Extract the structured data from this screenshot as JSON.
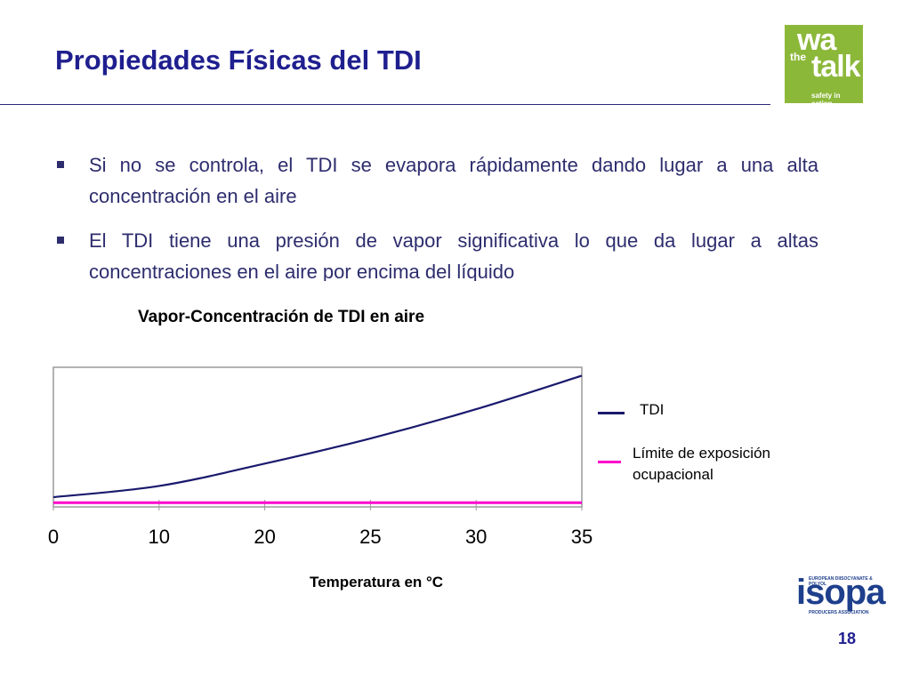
{
  "slide": {
    "title": "Propiedades Físicas del TDI",
    "page_number": "18"
  },
  "logos": {
    "walk": {
      "line1": "wa",
      "line2": "the",
      "line3": "talk",
      "tagline": "safety in action",
      "color": "#8cb83a"
    },
    "isopa": {
      "name": "isopa",
      "top_text": "EUROPEAN DIISOCYANATE & POLYOL",
      "bottom_text": "PRODUCERS ASSOCIATION",
      "color": "#1e3f8c"
    }
  },
  "bullets": [
    "Si no se controla, el TDI se evapora rápidamente dando lugar a una alta concentración en el aire",
    "El TDI tiene una presión de vapor significativa lo que da lugar a altas concentraciones en el aire por encima del líquido"
  ],
  "chart_data": {
    "type": "line",
    "title": "Vapor-Concentración de TDI en aire",
    "xlabel": "Temperatura en °C",
    "ylabel": "",
    "categories": [
      "0",
      "10",
      "20",
      "25",
      "30",
      "35"
    ],
    "series": [
      {
        "name": "TDI",
        "color": "#1a1a6e",
        "values": [
          0.07,
          0.15,
          0.31,
          0.49,
          0.7,
          0.94
        ]
      },
      {
        "name": "Límite de exposición ocupacional",
        "color": "#ff00cc",
        "values": [
          0.03,
          0.03,
          0.03,
          0.03,
          0.03,
          0.03
        ]
      }
    ],
    "ylim": [
      0,
      1
    ],
    "grid": false,
    "legend": "right"
  }
}
